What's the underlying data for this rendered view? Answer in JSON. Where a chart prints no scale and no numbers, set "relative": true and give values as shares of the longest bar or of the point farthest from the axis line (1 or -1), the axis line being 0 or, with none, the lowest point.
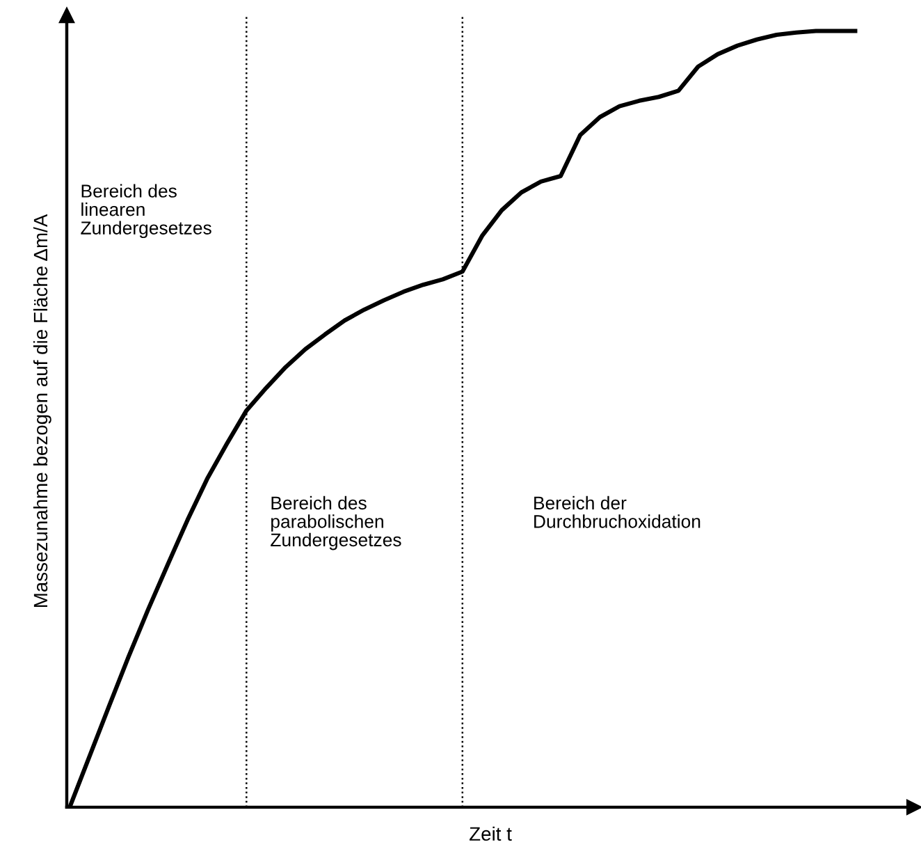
{
  "chart_data": {
    "type": "line",
    "relative": true,
    "xlabel": "Zeit t",
    "ylabel": "Massezunahme bezogen auf die Fläche Δm/A",
    "categories": [
      null,
      null,
      null,
      null,
      null,
      null,
      null,
      null,
      null,
      null,
      null,
      null,
      null,
      null,
      null,
      null,
      null,
      null,
      null,
      null,
      null,
      null,
      null,
      null,
      null,
      null,
      null,
      null,
      null,
      null,
      null,
      null,
      null,
      null,
      null,
      null,
      null,
      null,
      null,
      null,
      null
    ],
    "series": [
      {
        "color": "#000000",
        "values": [
          0,
          0.065,
          0.13,
          0.194,
          0.255,
          0.313,
          0.37,
          0.423,
          0.468,
          0.511,
          0.54,
          0.567,
          0.59,
          0.609,
          0.627,
          0.641,
          0.653,
          0.664,
          0.673,
          0.68,
          0.69,
          0.736,
          0.769,
          0.792,
          0.806,
          0.813,
          0.866,
          0.889,
          0.903,
          0.91,
          0.915,
          0.923,
          0.954,
          0.97,
          0.981,
          0.989,
          0.995,
          0.998,
          1,
          1,
          1
        ]
      }
    ],
    "annotations": [
      "Bereich des\nlinearen\nZundergesetzes",
      "Bereich des\nparabolischen\nZundergesetzes",
      "Bereich der\nDurchbruchoxidation"
    ],
    "legend": false,
    "marker": "none",
    "line_style": "solid"
  }
}
